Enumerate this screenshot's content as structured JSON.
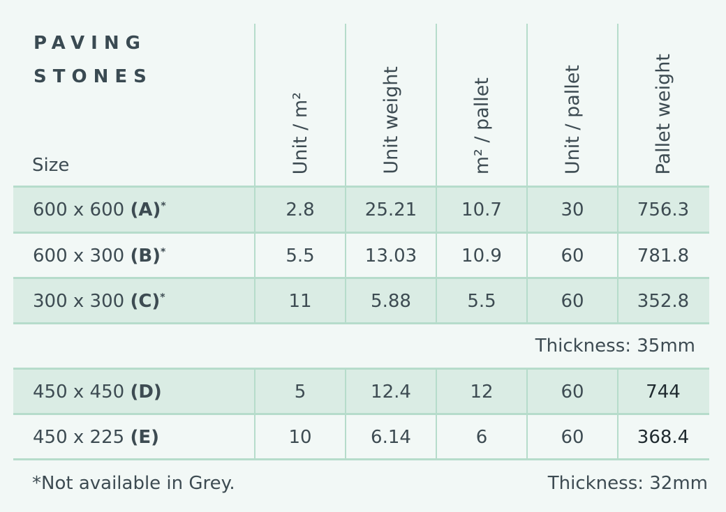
{
  "title_line1": "PAVING",
  "title_line2": "STONES",
  "size_header": "Size",
  "columns": [
    "Unit / m²",
    "Unit weight",
    "m² / pallet",
    "Unit / pallet",
    "Pallet weight"
  ],
  "group1": {
    "rows": [
      {
        "size": "600 x 600 ",
        "code": "(A)",
        "mark": "*",
        "values": [
          "2.8",
          "25.21",
          "10.7",
          "30",
          "756.3"
        ]
      },
      {
        "size": "600 x 300 ",
        "code": "(B)",
        "mark": "*",
        "values": [
          "5.5",
          "13.03",
          "10.9",
          "60",
          "781.8"
        ]
      },
      {
        "size": "300 x 300 ",
        "code": "(C)",
        "mark": "*",
        "values": [
          "11",
          "5.88",
          "5.5",
          "60",
          "352.8"
        ]
      }
    ],
    "thickness": "Thickness: 35mm"
  },
  "group2": {
    "rows": [
      {
        "size": "450 x 450 ",
        "code": "(D)",
        "mark": "",
        "values": [
          "5",
          "12.4",
          "12",
          "60",
          "744"
        ]
      },
      {
        "size": "450 x 225 ",
        "code": "(E)",
        "mark": "",
        "values": [
          "10",
          "6.14",
          "6",
          "60",
          "368.4"
        ]
      }
    ],
    "thickness": "Thickness: 32mm"
  },
  "footnote": "*Not available in Grey."
}
